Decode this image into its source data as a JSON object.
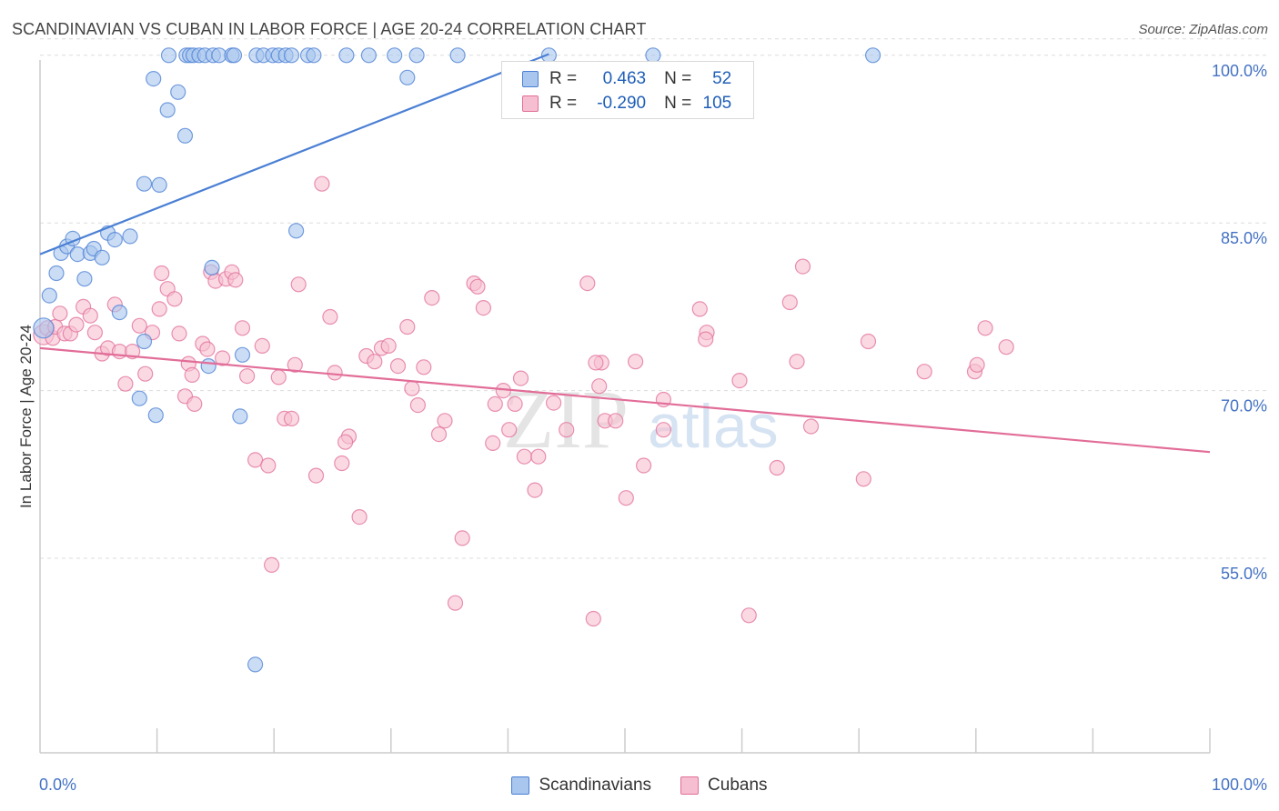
{
  "title": "SCANDINAVIAN VS CUBAN IN LABOR FORCE | AGE 20-24 CORRELATION CHART",
  "source": "Source: ZipAtlas.com",
  "watermark": {
    "zip": "ZIP",
    "atlas": "atlas"
  },
  "legend": {
    "rows": [
      {
        "r_label": "R =",
        "r_value": "0.463",
        "n_label": "N =",
        "n_value": "52",
        "color": "#4a7fd4"
      },
      {
        "r_label": "R =",
        "r_value": "-0.290",
        "n_label": "N =",
        "n_value": "105",
        "color": "#e26d98"
      }
    ]
  },
  "bottom_legend": {
    "scandinavians": "Scandinavians",
    "cubans": "Cubans"
  },
  "chart_data": {
    "type": "scatter",
    "title": "SCANDINAVIAN VS CUBAN IN LABOR FORCE | AGE 20-24 CORRELATION CHART",
    "xlabel": "",
    "ylabel": "In Labor Force | Age 20-24",
    "xlim": [
      0,
      100
    ],
    "ylim": [
      37.6,
      101.2
    ],
    "x_tick_labels": [
      "0.0%",
      "100.0%"
    ],
    "y_ticks": [
      {
        "value": 100,
        "label": "100.0%"
      },
      {
        "value": 85,
        "label": "85.0%"
      },
      {
        "value": 70,
        "label": "70.0%"
      },
      {
        "value": 55,
        "label": "55.0%"
      }
    ],
    "grid": "horizontal dashed",
    "legend_position": "top-center",
    "series": [
      {
        "name": "Scandinavians",
        "color": "#4a7fd4",
        "fill": "#a9c6ee",
        "trend": {
          "x": [
            0,
            43.5
          ],
          "y": [
            82.2,
            100.1
          ]
        },
        "points": [
          [
            0.3,
            75.6
          ],
          [
            0.8,
            78.5
          ],
          [
            1.4,
            80.5
          ],
          [
            1.8,
            82.3
          ],
          [
            2.3,
            82.9
          ],
          [
            2.8,
            83.6
          ],
          [
            3.2,
            82.2
          ],
          [
            3.8,
            80.0
          ],
          [
            4.3,
            82.3
          ],
          [
            4.6,
            82.7
          ],
          [
            5.3,
            81.9
          ],
          [
            5.8,
            84.1
          ],
          [
            6.4,
            83.5
          ],
          [
            6.8,
            77.0
          ],
          [
            7.7,
            83.8
          ],
          [
            8.5,
            69.3
          ],
          [
            8.9,
            74.4
          ],
          [
            9.9,
            67.8
          ],
          [
            8.9,
            88.5
          ],
          [
            10.2,
            88.4
          ],
          [
            9.7,
            97.9
          ],
          [
            10.9,
            95.1
          ],
          [
            11.8,
            96.7
          ],
          [
            12.4,
            92.8
          ],
          [
            11.0,
            100.0
          ],
          [
            12.5,
            100.0
          ],
          [
            12.8,
            100.0
          ],
          [
            13.1,
            100.0
          ],
          [
            13.6,
            100.0
          ],
          [
            14.1,
            100.0
          ],
          [
            14.8,
            100.0
          ],
          [
            15.3,
            100.0
          ],
          [
            16.4,
            100.0
          ],
          [
            16.6,
            100.0
          ],
          [
            18.5,
            100.0
          ],
          [
            19.1,
            100.0
          ],
          [
            19.9,
            100.0
          ],
          [
            20.4,
            100.0
          ],
          [
            21.0,
            100.0
          ],
          [
            21.5,
            100.0
          ],
          [
            22.9,
            100.0
          ],
          [
            23.4,
            100.0
          ],
          [
            26.2,
            100.0
          ],
          [
            28.1,
            100.0
          ],
          [
            30.3,
            100.0
          ],
          [
            31.4,
            98.0
          ],
          [
            32.2,
            100.0
          ],
          [
            35.7,
            100.0
          ],
          [
            43.5,
            100.0
          ],
          [
            52.4,
            100.0
          ],
          [
            71.2,
            100.0
          ],
          [
            14.4,
            72.2
          ],
          [
            14.7,
            81.0
          ],
          [
            17.1,
            67.7
          ],
          [
            17.3,
            73.2
          ],
          [
            21.9,
            84.3
          ],
          [
            18.4,
            45.5
          ]
        ]
      },
      {
        "name": "Cubans",
        "color": "#e26d98",
        "fill": "#f6bfd1",
        "trend": {
          "x": [
            0,
            100
          ],
          "y": [
            73.8,
            64.5
          ]
        },
        "points": [
          [
            0.3,
            75.0
          ],
          [
            0.6,
            75.6
          ],
          [
            1.1,
            74.7
          ],
          [
            1.3,
            75.7
          ],
          [
            1.7,
            76.9
          ],
          [
            2.1,
            75.1
          ],
          [
            2.6,
            75.1
          ],
          [
            3.1,
            75.9
          ],
          [
            3.7,
            77.5
          ],
          [
            4.3,
            76.7
          ],
          [
            4.7,
            75.2
          ],
          [
            5.3,
            73.3
          ],
          [
            5.8,
            73.8
          ],
          [
            6.4,
            77.7
          ],
          [
            6.8,
            73.5
          ],
          [
            7.3,
            70.6
          ],
          [
            7.9,
            73.5
          ],
          [
            8.5,
            75.8
          ],
          [
            9.0,
            71.5
          ],
          [
            9.6,
            75.2
          ],
          [
            10.2,
            77.3
          ],
          [
            10.4,
            80.5
          ],
          [
            10.9,
            79.1
          ],
          [
            11.5,
            78.2
          ],
          [
            11.9,
            75.1
          ],
          [
            12.4,
            69.5
          ],
          [
            12.7,
            72.4
          ],
          [
            13.2,
            68.8
          ],
          [
            13.9,
            74.2
          ],
          [
            14.3,
            73.7
          ],
          [
            14.6,
            80.6
          ],
          [
            15.0,
            79.8
          ],
          [
            15.6,
            72.9
          ],
          [
            15.9,
            80.0
          ],
          [
            16.4,
            80.6
          ],
          [
            16.7,
            79.9
          ],
          [
            17.3,
            75.6
          ],
          [
            17.7,
            71.3
          ],
          [
            18.4,
            63.8
          ],
          [
            19.0,
            74.0
          ],
          [
            19.5,
            63.3
          ],
          [
            19.8,
            54.4
          ],
          [
            20.4,
            71.2
          ],
          [
            20.9,
            67.5
          ],
          [
            21.5,
            67.5
          ],
          [
            21.8,
            72.3
          ],
          [
            22.1,
            79.5
          ],
          [
            23.6,
            62.4
          ],
          [
            24.1,
            88.5
          ],
          [
            24.8,
            76.6
          ],
          [
            25.2,
            71.6
          ],
          [
            25.8,
            63.5
          ],
          [
            26.4,
            65.9
          ],
          [
            27.3,
            58.7
          ],
          [
            27.9,
            73.1
          ],
          [
            28.6,
            72.6
          ],
          [
            29.2,
            73.8
          ],
          [
            29.8,
            74.0
          ],
          [
            30.6,
            72.2
          ],
          [
            31.4,
            75.7
          ],
          [
            31.8,
            70.2
          ],
          [
            32.3,
            68.7
          ],
          [
            32.8,
            72.1
          ],
          [
            33.5,
            78.3
          ],
          [
            34.1,
            66.1
          ],
          [
            34.6,
            67.3
          ],
          [
            35.5,
            51.0
          ],
          [
            36.1,
            56.8
          ],
          [
            37.1,
            79.6
          ],
          [
            37.4,
            79.3
          ],
          [
            37.9,
            77.4
          ],
          [
            38.9,
            68.8
          ],
          [
            39.6,
            70.0
          ],
          [
            40.1,
            66.5
          ],
          [
            40.6,
            68.8
          ],
          [
            41.1,
            71.1
          ],
          [
            41.4,
            64.1
          ],
          [
            42.3,
            61.1
          ],
          [
            42.6,
            64.1
          ],
          [
            43.9,
            68.9
          ],
          [
            45.0,
            66.5
          ],
          [
            46.8,
            79.6
          ],
          [
            47.3,
            49.6
          ],
          [
            47.8,
            70.4
          ],
          [
            48.3,
            67.3
          ],
          [
            49.2,
            67.3
          ],
          [
            50.1,
            60.4
          ],
          [
            50.9,
            72.6
          ],
          [
            51.6,
            63.3
          ],
          [
            53.3,
            66.5
          ],
          [
            56.4,
            77.3
          ],
          [
            57.0,
            75.2
          ],
          [
            56.9,
            74.6
          ],
          [
            59.8,
            70.9
          ],
          [
            60.6,
            49.9
          ],
          [
            63.0,
            63.1
          ],
          [
            64.1,
            77.9
          ],
          [
            64.7,
            72.6
          ],
          [
            65.2,
            81.1
          ],
          [
            65.9,
            66.8
          ],
          [
            70.4,
            62.1
          ],
          [
            70.8,
            74.4
          ],
          [
            75.6,
            71.7
          ],
          [
            79.9,
            71.7
          ],
          [
            80.1,
            72.3
          ],
          [
            80.8,
            75.6
          ],
          [
            82.6,
            73.9
          ],
          [
            48.0,
            72.5
          ],
          [
            53.3,
            69.2
          ],
          [
            38.7,
            65.3
          ],
          [
            13.0,
            71.4
          ],
          [
            26.1,
            65.4
          ],
          [
            47.5,
            72.5
          ]
        ]
      }
    ]
  }
}
